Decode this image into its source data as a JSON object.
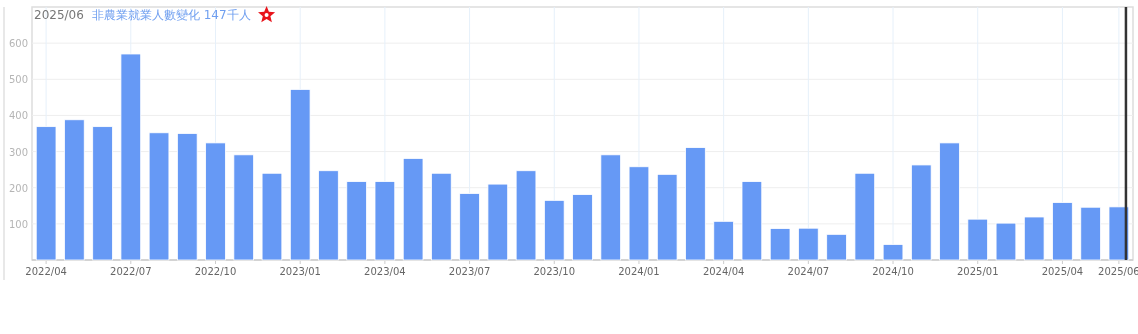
{
  "chart_data": {
    "type": "bar",
    "title": "2025/06",
    "subtitle": "非農業就業人數變化 147千人",
    "categories": [
      "2022/04",
      null,
      null,
      "2022/07",
      null,
      null,
      "2022/10",
      null,
      null,
      "2023/01",
      null,
      null,
      "2023/04",
      null,
      null,
      "2023/07",
      null,
      null,
      "2023/10",
      null,
      null,
      "2024/01",
      null,
      null,
      "2024/04",
      null,
      null,
      "2024/07",
      null,
      null,
      "2024/10",
      null,
      null,
      "2025/01",
      null,
      null,
      "2025/04",
      null,
      "2025/06"
    ],
    "values": [
      369,
      388,
      369,
      570,
      352,
      350,
      324,
      291,
      240,
      472,
      247,
      217,
      217,
      281,
      240,
      184,
      210,
      247,
      165,
      181,
      291,
      258,
      237,
      311,
      107,
      217,
      87,
      88,
      71,
      240,
      43,
      263,
      324,
      113,
      102,
      119,
      159,
      146,
      147
    ],
    "color": "#6699f5",
    "ylim": [
      0,
      700
    ],
    "yticks": [
      100,
      200,
      300,
      400,
      500,
      600
    ],
    "grid": true,
    "ref_lines": [
      {
        "axis": "x",
        "value": "2025/06",
        "color": "#333333"
      }
    ]
  }
}
